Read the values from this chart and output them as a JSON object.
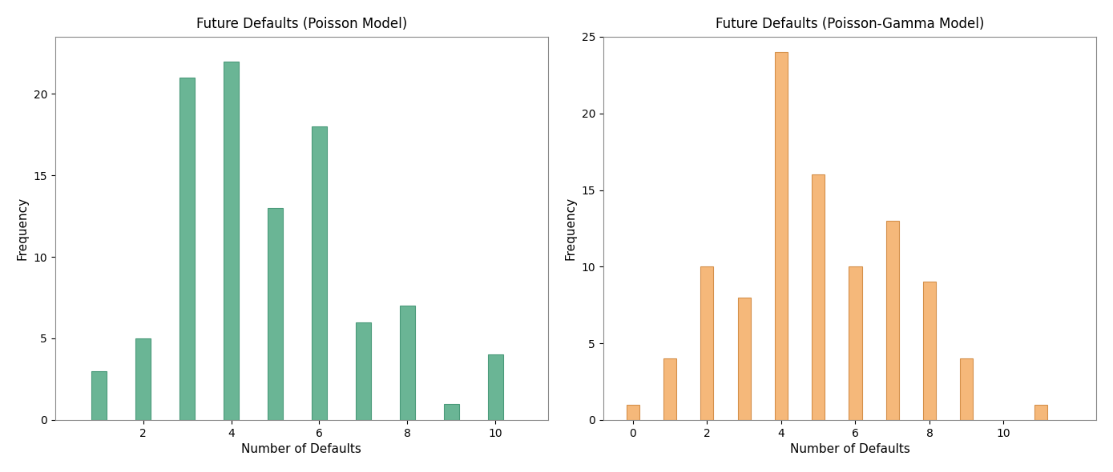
{
  "left": {
    "title": "Future Defaults (Poisson Model)",
    "xlabel": "Number of Defaults",
    "ylabel": "Frequency",
    "x_positions": [
      1,
      2,
      3,
      4,
      5,
      6,
      7,
      8,
      9,
      10
    ],
    "values": [
      3,
      5,
      21,
      22,
      13,
      18,
      6,
      7,
      1,
      4
    ],
    "bar_color": "#6ab595",
    "bar_edge_color": "#4a9a7a",
    "xticks": [
      2,
      4,
      6,
      8,
      10
    ],
    "yticks": [
      0,
      5,
      10,
      15,
      20
    ],
    "ylim": [
      0,
      23.5
    ],
    "xlim": [
      0.0,
      11.2
    ]
  },
  "right": {
    "title": "Future Defaults (Poisson-Gamma Model)",
    "xlabel": "Number of Defaults",
    "ylabel": "Frequency",
    "x_positions": [
      0,
      1,
      2,
      3,
      4,
      5,
      6,
      7,
      8,
      9,
      11
    ],
    "values": [
      1,
      4,
      10,
      8,
      24,
      16,
      10,
      13,
      9,
      4,
      1
    ],
    "bar_color": "#f5b87a",
    "bar_edge_color": "#d4904a",
    "xticks": [
      0,
      2,
      4,
      6,
      8,
      10
    ],
    "yticks": [
      0,
      5,
      10,
      15,
      20,
      25
    ],
    "ylim": [
      0,
      25
    ],
    "xlim": [
      -0.8,
      12.5
    ]
  },
  "background_color": "#ffffff",
  "bar_width": 0.35,
  "title_fontsize": 12,
  "axis_label_fontsize": 11,
  "tick_fontsize": 10
}
